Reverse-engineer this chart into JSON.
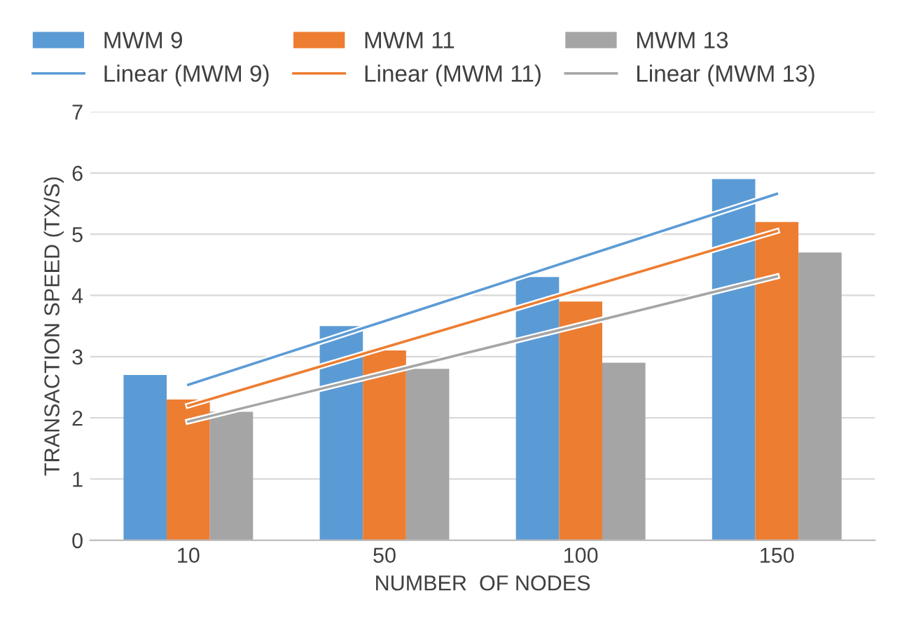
{
  "chart_data": {
    "type": "bar",
    "xlabel": "NUMBER  OF NODES",
    "ylabel": "TRANSACTION SPEED (TX/S)",
    "categories": [
      "10",
      "50",
      "100",
      "150"
    ],
    "series": [
      {
        "name": "MWM 9",
        "color": "#5b9bd5",
        "values": [
          2.7,
          3.5,
          4.3,
          5.9
        ]
      },
      {
        "name": "MWM 11",
        "color": "#ed7d31",
        "values": [
          2.3,
          3.1,
          3.9,
          5.2
        ]
      },
      {
        "name": "MWM 13",
        "color": "#a5a5a5",
        "values": [
          2.1,
          2.8,
          2.9,
          4.7
        ]
      },
      {
        "name": "Linear (MWM 9)",
        "type": "line",
        "color": "#5b9bd5",
        "values": [
          2.54,
          3.58,
          4.62,
          5.66
        ]
      },
      {
        "name": "Linear (MWM 11)",
        "type": "line",
        "color": "#ed7d31",
        "values": [
          2.2,
          3.15,
          4.1,
          5.05
        ]
      },
      {
        "name": "Linear (MWM 13)",
        "type": "line",
        "color": "#a5a5a5",
        "values": [
          1.94,
          2.73,
          3.52,
          4.31
        ]
      }
    ],
    "ylim": [
      0,
      7
    ],
    "yticks": [
      0,
      1,
      2,
      3,
      4,
      5,
      6,
      7
    ],
    "grid": "y",
    "legend": "top"
  }
}
